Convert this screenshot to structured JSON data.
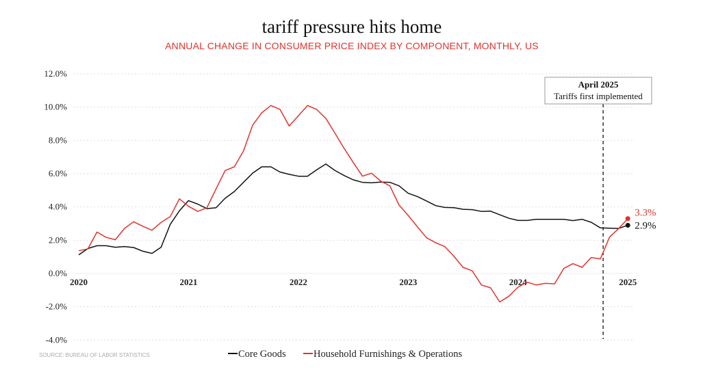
{
  "chart_data": {
    "type": "line",
    "title": "tariff pressure hits home",
    "subtitle": "ANNUAL CHANGE IN CONSUMER PRICE INDEX BY COMPONENT, MONTHLY, US",
    "source": "SOURCE: BUREAU OF LABOR STATISTICS",
    "xlabel": "",
    "ylabel": "",
    "ylim": [
      -4,
      12
    ],
    "y_ticks": [
      {
        "value": 12,
        "label": "12.0%"
      },
      {
        "value": 10,
        "label": "10.0%"
      },
      {
        "value": 8,
        "label": "8.0%"
      },
      {
        "value": 6,
        "label": "6.0%"
      },
      {
        "value": 4,
        "label": "4.0%"
      },
      {
        "value": 2,
        "label": "2.0%"
      },
      {
        "value": 0,
        "label": "0.0%"
      },
      {
        "value": -2,
        "label": "-2.0%"
      },
      {
        "value": -4,
        "label": "-4.0%"
      }
    ],
    "x_ticks": [
      {
        "index": 0,
        "label": "2020"
      },
      {
        "index": 12,
        "label": "2021"
      },
      {
        "index": 24,
        "label": "2022"
      },
      {
        "index": 36,
        "label": "2023"
      },
      {
        "index": 48,
        "label": "2024"
      },
      {
        "index": 60,
        "label": "2025"
      }
    ],
    "grid": true,
    "legend": "bottom",
    "series": [
      {
        "name": "Core Goods",
        "color": "#111111",
        "end_label": "2.9%",
        "values": [
          1.12,
          1.5,
          1.67,
          1.67,
          1.58,
          1.62,
          1.56,
          1.34,
          1.21,
          1.58,
          2.95,
          3.77,
          4.38,
          4.17,
          3.9,
          3.95,
          4.52,
          4.93,
          5.48,
          6.03,
          6.41,
          6.41,
          6.1,
          5.96,
          5.85,
          5.85,
          6.23,
          6.58,
          6.19,
          5.89,
          5.63,
          5.48,
          5.45,
          5.5,
          5.48,
          5.27,
          4.82,
          4.63,
          4.36,
          4.08,
          3.97,
          3.96,
          3.86,
          3.84,
          3.73,
          3.75,
          3.53,
          3.32,
          3.19,
          3.19,
          3.26,
          3.26,
          3.26,
          3.26,
          3.18,
          3.26,
          3.08,
          2.74,
          2.72,
          2.71,
          2.9
        ]
      },
      {
        "name": "Household Furnishings & Operations",
        "color": "#e2322b",
        "end_label": "3.3%",
        "values": [
          1.37,
          1.48,
          2.49,
          2.17,
          2.03,
          2.71,
          3.11,
          2.84,
          2.6,
          3.07,
          3.42,
          4.49,
          4.04,
          3.73,
          3.95,
          5.07,
          6.19,
          6.41,
          7.36,
          8.91,
          9.66,
          10.1,
          9.86,
          8.86,
          9.48,
          10.1,
          9.86,
          9.32,
          8.43,
          7.52,
          6.67,
          5.85,
          6.03,
          5.55,
          5.27,
          4.11,
          3.49,
          2.81,
          2.15,
          1.85,
          1.62,
          1.03,
          0.37,
          0.16,
          -0.69,
          -0.86,
          -1.71,
          -1.37,
          -0.82,
          -0.52,
          -0.69,
          -0.59,
          -0.62,
          0.3,
          0.59,
          0.37,
          0.96,
          0.88,
          2.19,
          2.7,
          3.3
        ]
      }
    ],
    "annotation": {
      "index": 57.3,
      "line1": "April 2025",
      "line2": "Tariffs first implemented"
    }
  }
}
